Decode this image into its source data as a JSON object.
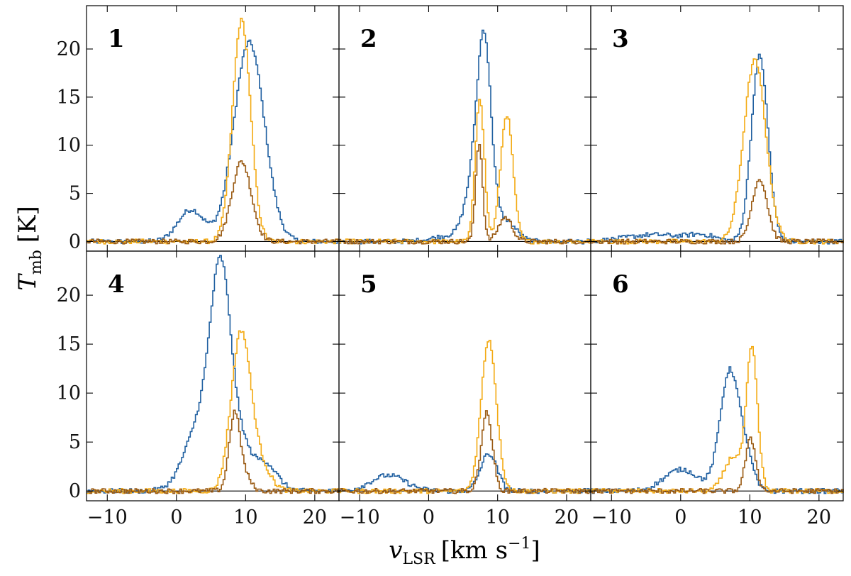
{
  "chart_data": {
    "type": "line",
    "layout": "2x3 grid of step-line spectra, shared axes",
    "xlabel_main": "v",
    "xlabel_sub": "LSR",
    "xlabel_units": "[km s",
    "xlabel_exp": "−1",
    "xlabel_close": "]",
    "ylabel_main": "T",
    "ylabel_sub": "mb",
    "ylabel_units": "[K]",
    "xlim": [
      -13,
      23.5
    ],
    "ylim": [
      -1,
      24.5
    ],
    "xticks": [
      -10,
      0,
      10,
      20
    ],
    "yticks": [
      0,
      5,
      10,
      15,
      20
    ],
    "grid": false,
    "legend": "none",
    "colors": {
      "blue": "#1f5fa0",
      "orange": "#f3aa12",
      "brown": "#9a5a12"
    },
    "panels": [
      {
        "label": "1",
        "series": [
          {
            "color": "blue",
            "components": [
              [
                2,
                3.3,
                1.9
              ],
              [
                10.4,
                20.7,
                2.2
              ]
            ]
          },
          {
            "color": "orange",
            "components": [
              [
                9.3,
                23,
                1.3
              ]
            ]
          },
          {
            "color": "brown",
            "components": [
              [
                9.3,
                8.3,
                1.4
              ]
            ]
          }
        ]
      },
      {
        "label": "2",
        "series": [
          {
            "color": "blue",
            "components": [
              [
                8,
                18.4,
                1.0
              ],
              [
                6.5,
                6,
                1.3
              ],
              [
                3,
                0.6,
                2.5
              ],
              [
                11,
                2.2,
                1.5
              ]
            ]
          },
          {
            "color": "orange",
            "components": [
              [
                7.3,
                15,
                0.65
              ],
              [
                11.2,
                13.2,
                0.9
              ]
            ]
          },
          {
            "color": "brown",
            "components": [
              [
                7.2,
                10.3,
                0.5
              ],
              [
                11,
                2.5,
                1.0
              ]
            ]
          }
        ]
      },
      {
        "label": "3",
        "series": [
          {
            "color": "blue",
            "components": [
              [
                11.3,
                19.3,
                1.2
              ],
              [
                -4,
                0.7,
                4
              ],
              [
                3,
                0.6,
                2
              ]
            ]
          },
          {
            "color": "orange",
            "components": [
              [
                10.6,
                18.8,
                1.6
              ]
            ]
          },
          {
            "color": "brown",
            "components": [
              [
                11.3,
                6.5,
                1.1
              ]
            ]
          }
        ]
      },
      {
        "label": "4",
        "series": [
          {
            "color": "blue",
            "components": [
              [
                6.4,
                20.5,
                1.5
              ],
              [
                3.5,
                7,
                2.3
              ],
              [
                12.5,
                3,
                1.8
              ],
              [
                9.5,
                3,
                1.2
              ]
            ]
          },
          {
            "color": "orange",
            "components": [
              [
                9.2,
                16,
                1.4
              ],
              [
                12,
                2.4,
                1.5
              ]
            ]
          },
          {
            "color": "brown",
            "components": [
              [
                8.3,
                8,
                0.8
              ],
              [
                10,
                1.2,
                0.8
              ]
            ]
          }
        ]
      },
      {
        "label": "5",
        "series": [
          {
            "color": "blue",
            "components": [
              [
                8.6,
                3.8,
                1.2
              ],
              [
                -6,
                1.6,
                2.5
              ]
            ]
          },
          {
            "color": "orange",
            "components": [
              [
                8.6,
                15.5,
                1.1
              ]
            ]
          },
          {
            "color": "brown",
            "components": [
              [
                8.3,
                8,
                0.8
              ]
            ]
          }
        ]
      },
      {
        "label": "6",
        "series": [
          {
            "color": "blue",
            "components": [
              [
                7,
                12.3,
                1.4
              ],
              [
                0,
                2.2,
                2.5
              ],
              [
                9.5,
                2.5,
                1
              ]
            ]
          },
          {
            "color": "orange",
            "components": [
              [
                10.2,
                14.3,
                0.8
              ],
              [
                7.5,
                3.5,
                1.3
              ]
            ]
          },
          {
            "color": "brown",
            "components": [
              [
                10,
                5.3,
                0.75
              ]
            ]
          }
        ]
      }
    ]
  }
}
